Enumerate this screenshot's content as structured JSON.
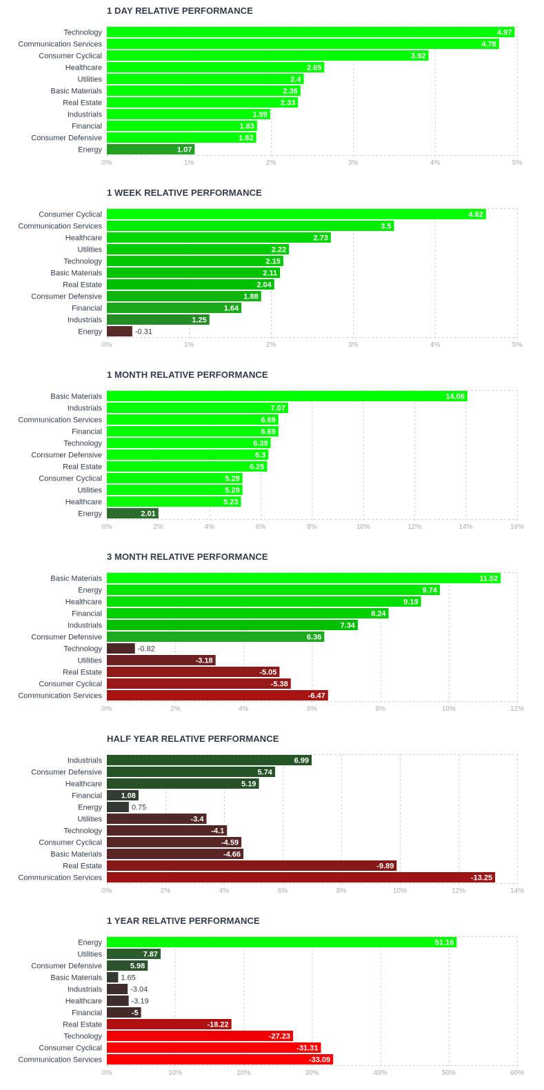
{
  "chart_data": [
    {
      "type": "bar",
      "orientation": "horizontal",
      "title": "1 DAY RELATIVE PERFORMANCE",
      "categories": [
        "Technology",
        "Communication Services",
        "Consumer Cyclical",
        "Healthcare",
        "Utilities",
        "Basic Materials",
        "Real Estate",
        "Industrials",
        "Financial",
        "Consumer Defensive",
        "Energy"
      ],
      "values": [
        4.97,
        4.78,
        3.92,
        2.65,
        2.4,
        2.36,
        2.33,
        1.99,
        1.83,
        1.82,
        1.07
      ],
      "value_labels": [
        "4.97",
        "4.78",
        "3.92",
        "2.65",
        "2.4",
        "2.36",
        "2.33",
        "1.99",
        "1.83",
        "1.82",
        "1.07"
      ],
      "colors": [
        "#00ff00",
        "#00ff00",
        "#00ff00",
        "#00ff00",
        "#00ff00",
        "#00ff00",
        "#00ff00",
        "#00ff00",
        "#00ff00",
        "#00ff00",
        "#21a023"
      ],
      "xlim": [
        0,
        5
      ],
      "ticks": [
        "0%",
        "1%",
        "2%",
        "3%",
        "4%",
        "5%"
      ],
      "grid": true
    },
    {
      "type": "bar",
      "orientation": "horizontal",
      "title": "1 WEEK RELATIVE PERFORMANCE",
      "categories": [
        "Consumer Cyclical",
        "Communication Services",
        "Healthcare",
        "Utilities",
        "Technology",
        "Basic Materials",
        "Real Estate",
        "Consumer Defensive",
        "Financial",
        "Industrials",
        "Energy"
      ],
      "values": [
        4.62,
        3.5,
        2.73,
        2.22,
        2.15,
        2.11,
        2.04,
        1.88,
        1.64,
        1.25,
        -0.31
      ],
      "value_labels": [
        "4.62",
        "3.5",
        "2.73",
        "2.22",
        "2.15",
        "2.11",
        "2.04",
        "1.88",
        "1.64",
        "1.25",
        "-0.31"
      ],
      "colors": [
        "#00ff00",
        "#00ec00",
        "#00d600",
        "#00cc00",
        "#00c800",
        "#00c400",
        "#00c000",
        "#0fb40f",
        "#18a818",
        "#248c24",
        "#582a2a"
      ],
      "xlim": [
        0,
        5
      ],
      "ticks": [
        "0%",
        "1%",
        "2%",
        "3%",
        "4%",
        "5%"
      ],
      "grid": true
    },
    {
      "type": "bar",
      "orientation": "horizontal",
      "title": "1 MONTH RELATIVE PERFORMANCE",
      "categories": [
        "Basic Materials",
        "Industrials",
        "Communication Services",
        "Financial",
        "Technology",
        "Consumer Defensive",
        "Real Estate",
        "Consumer Cyclical",
        "Utilities",
        "Healthcare",
        "Energy"
      ],
      "values": [
        14.06,
        7.07,
        6.69,
        6.69,
        6.39,
        6.3,
        6.25,
        5.29,
        5.29,
        5.23,
        2.01
      ],
      "value_labels": [
        "14.06",
        "7.07",
        "6.69",
        "6.69",
        "6.39",
        "6.3",
        "6.25",
        "5.29",
        "5.29",
        "5.23",
        "2.01"
      ],
      "colors": [
        "#00ff00",
        "#00ff00",
        "#00ff00",
        "#00ff00",
        "#00ff00",
        "#00ff00",
        "#00ff00",
        "#00ff00",
        "#00ff00",
        "#00ff00",
        "#2b6e2b"
      ],
      "xlim": [
        0,
        16
      ],
      "ticks": [
        "0%",
        "2%",
        "4%",
        "6%",
        "8%",
        "10%",
        "12%",
        "14%",
        "16%"
      ],
      "grid": true
    },
    {
      "type": "bar",
      "orientation": "horizontal",
      "title": "3 MONTH RELATIVE PERFORMANCE",
      "categories": [
        "Basic Materials",
        "Energy",
        "Healthcare",
        "Financial",
        "Industrials",
        "Consumer Defensive",
        "Technology",
        "Utilities",
        "Real Estate",
        "Consumer Cyclical",
        "Communication Services"
      ],
      "values": [
        11.52,
        9.74,
        9.19,
        8.24,
        7.34,
        6.36,
        -0.82,
        -3.18,
        -5.05,
        -5.38,
        -6.47
      ],
      "value_labels": [
        "11.52",
        "9.74",
        "9.19",
        "8.24",
        "7.34",
        "6.36",
        "-0.82",
        "-3.18",
        "-5.05",
        "-5.38",
        "-6.47"
      ],
      "colors": [
        "#00ff00",
        "#00e600",
        "#00e000",
        "#00d000",
        "#00c000",
        "#1eaa1e",
        "#4a2626",
        "#6e1f1f",
        "#8f1a1a",
        "#981818",
        "#a81414"
      ],
      "xlim": [
        0,
        12
      ],
      "ticks": [
        "0%",
        "2%",
        "4%",
        "6%",
        "8%",
        "10%",
        "12%"
      ],
      "grid": true
    },
    {
      "type": "bar",
      "orientation": "horizontal",
      "title": "HALF YEAR RELATIVE PERFORMANCE",
      "categories": [
        "Industrials",
        "Consumer Defensive",
        "Healthcare",
        "Financial",
        "Energy",
        "Utilities",
        "Technology",
        "Consumer Cyclical",
        "Basic Materials",
        "Real Estate",
        "Communication Services"
      ],
      "values": [
        6.99,
        5.74,
        5.19,
        1.08,
        0.75,
        -3.4,
        -4.1,
        -4.59,
        -4.66,
        -9.89,
        -13.25
      ],
      "value_labels": [
        "6.99",
        "5.74",
        "5.19",
        "1.08",
        "0.75",
        "-3.4",
        "-4.1",
        "-4.59",
        "-4.66",
        "-9.89",
        "-13.25"
      ],
      "colors": [
        "#255426",
        "#265227",
        "#275027",
        "#303d30",
        "#333a33",
        "#512828",
        "#552626",
        "#582525",
        "#592525",
        "#861818",
        "#9a1414"
      ],
      "xlim": [
        0,
        14
      ],
      "ticks": [
        "0%",
        "2%",
        "4%",
        "6%",
        "8%",
        "10%",
        "12%",
        "14%"
      ],
      "grid": true
    },
    {
      "type": "bar",
      "orientation": "horizontal",
      "title": "1 YEAR RELATIVE PERFORMANCE",
      "categories": [
        "Energy",
        "Utilities",
        "Consumer Defensive",
        "Basic Materials",
        "Industrials",
        "Healthcare",
        "Financial",
        "Real Estate",
        "Technology",
        "Consumer Cyclical",
        "Communication Services"
      ],
      "values": [
        51.16,
        7.87,
        5.98,
        1.65,
        -3.04,
        -3.19,
        -5,
        -18.22,
        -27.23,
        -31.31,
        -33.09
      ],
      "value_labels": [
        "51.16",
        "7.87",
        "5.98",
        "1.65",
        "-3.04",
        "-3.19",
        "-5",
        "-18.22",
        "-27.23",
        "-31.31",
        "-33.09"
      ],
      "colors": [
        "#00ff00",
        "#2b5c2c",
        "#2d532d",
        "#313b31",
        "#3e2d2d",
        "#3f2c2c",
        "#452a2a",
        "#b01010",
        "#f00000",
        "#ff0000",
        "#ff0000"
      ],
      "xlim": [
        0,
        60
      ],
      "ticks": [
        "0%",
        "10%",
        "20%",
        "30%",
        "40%",
        "50%",
        "60%"
      ],
      "grid": true
    }
  ]
}
